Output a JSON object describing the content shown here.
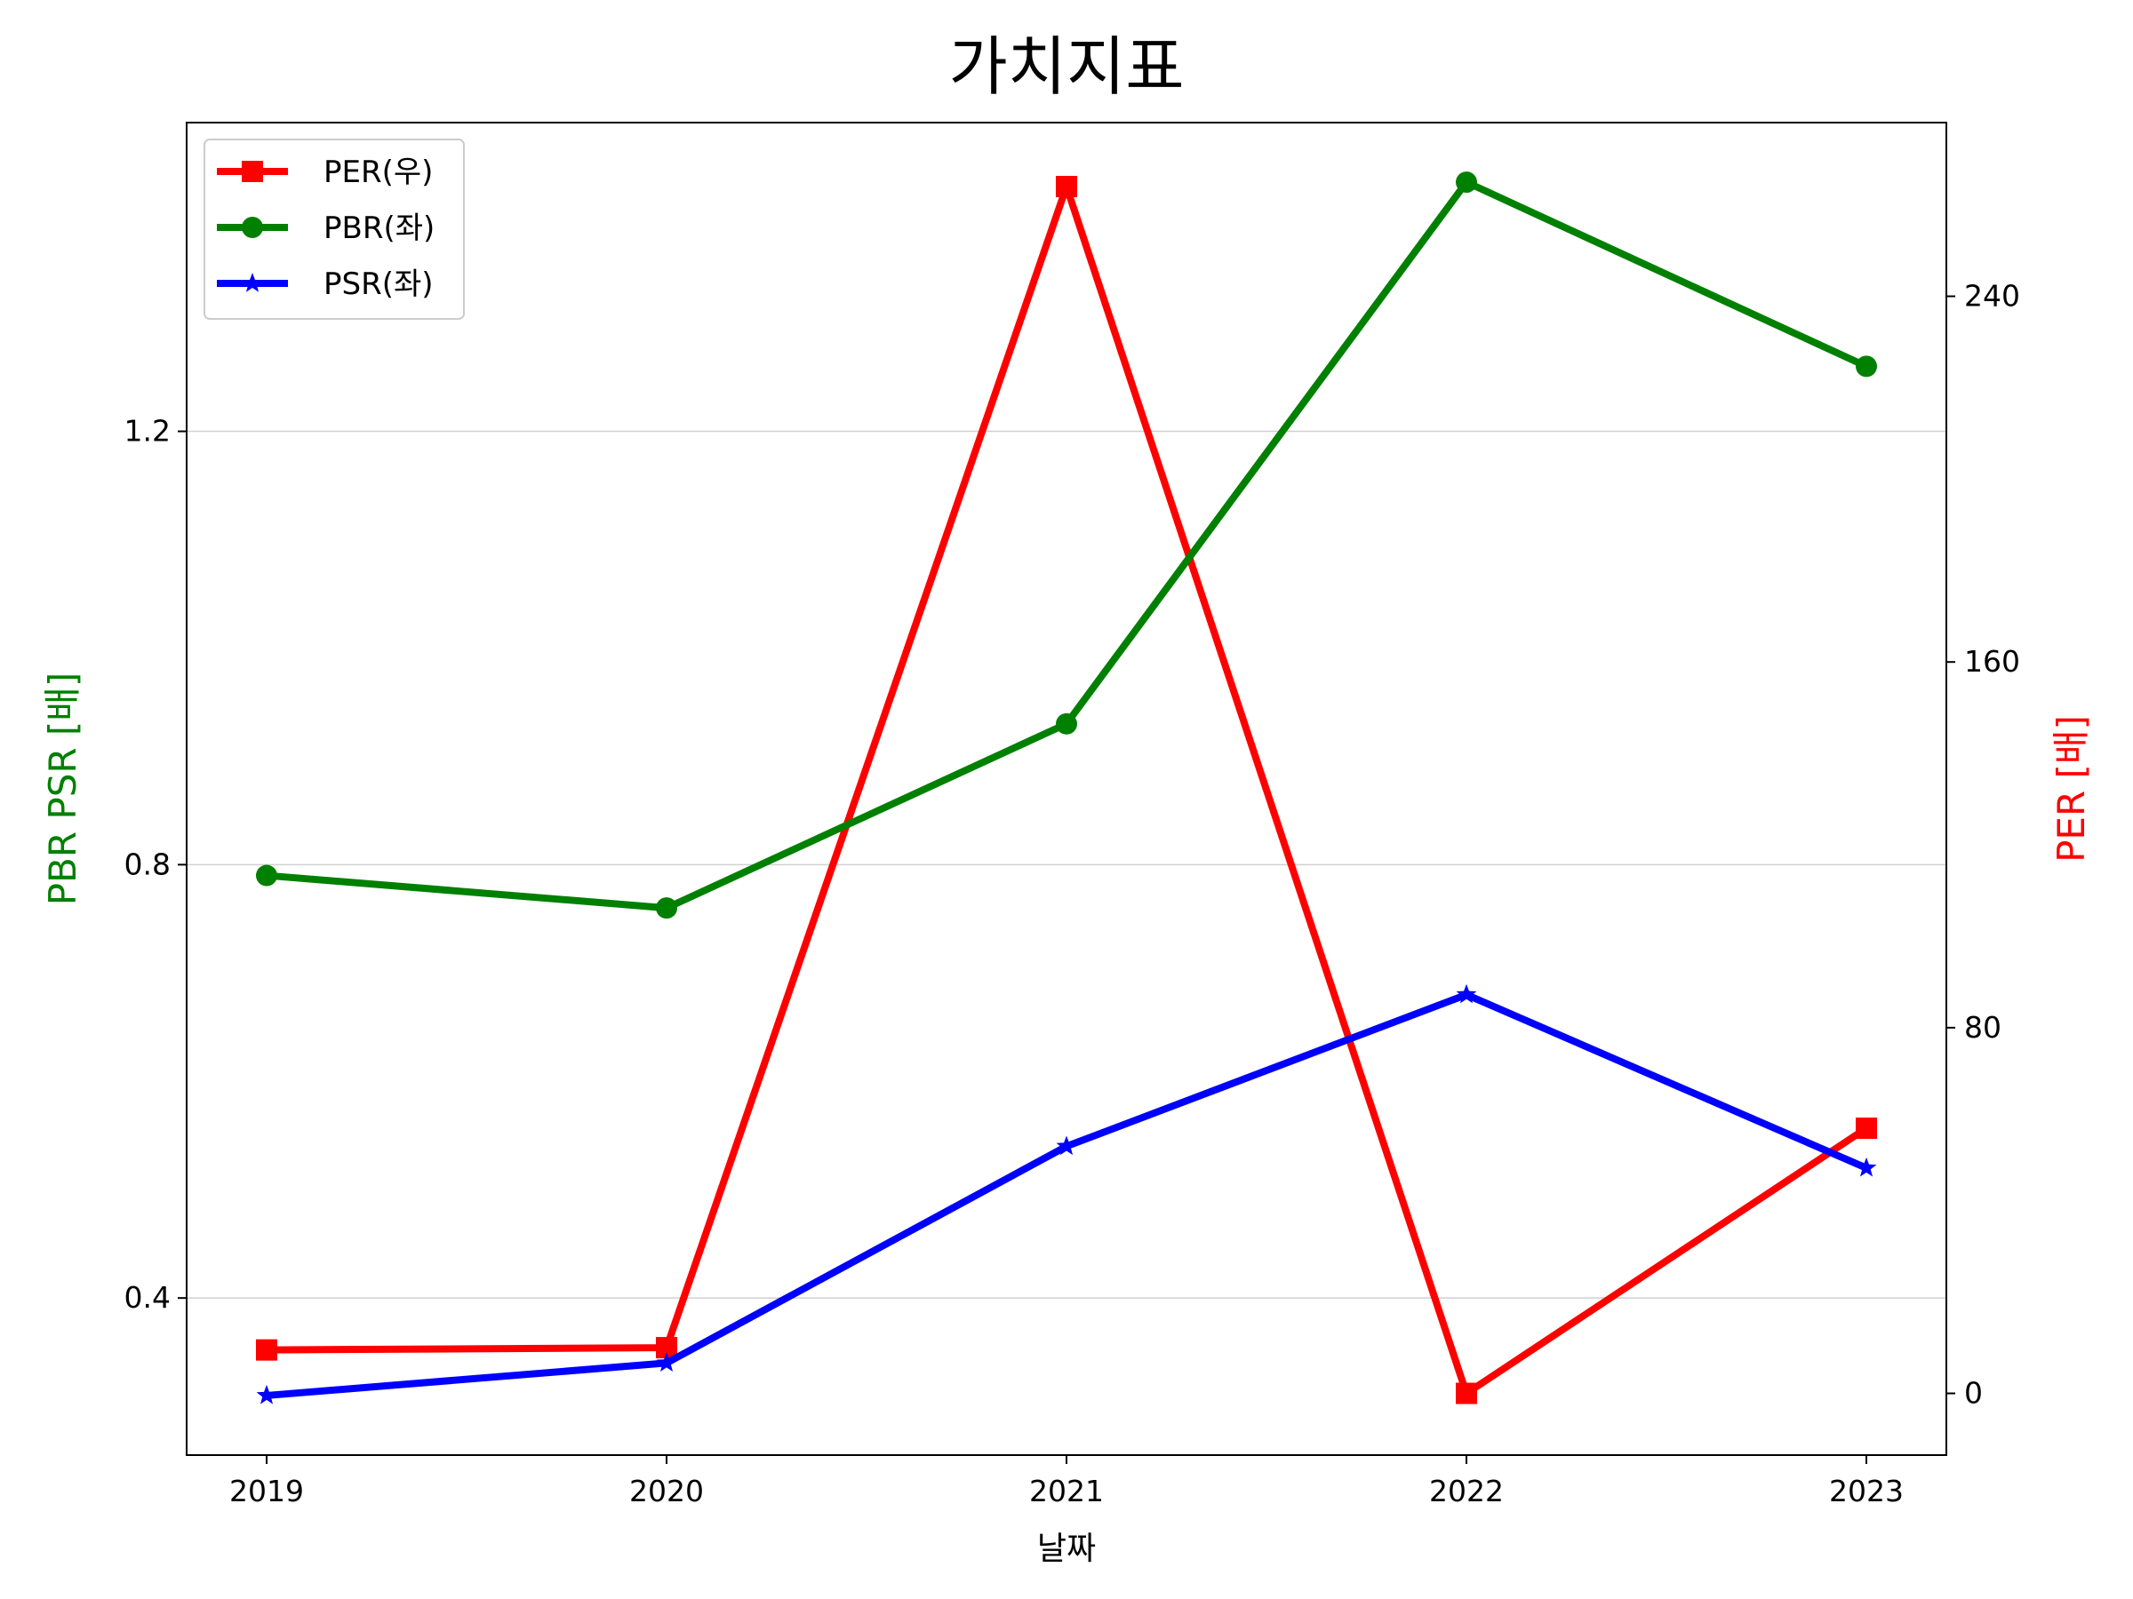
{
  "chart_data": {
    "type": "line",
    "title": "가치지표",
    "xlabel": "날짜",
    "ylabel_left": "PBR PSR [배]",
    "ylabel_right": "PER [배]",
    "categories": [
      "2019",
      "2020",
      "2021",
      "2022",
      "2023"
    ],
    "left_axis": {
      "ylim": [
        0.255,
        1.485
      ],
      "ticks": [
        0.4,
        0.8,
        1.2
      ],
      "tick_labels": [
        "0.4",
        "0.8",
        "1.2"
      ]
    },
    "right_axis": {
      "ylim": [
        -13.5,
        278
      ],
      "ticks": [
        0,
        80,
        160,
        240
      ],
      "tick_labels": [
        "0",
        "80",
        "160",
        "240"
      ]
    },
    "grid": {
      "horizontal": true,
      "vertical": false,
      "axis": "left"
    },
    "legend": {
      "placement": "upper-left"
    },
    "series": [
      {
        "name": "PER(우)",
        "axis": "right",
        "color": "#ff0000",
        "marker": "square",
        "values": [
          9.5,
          10,
          264,
          0,
          58
        ]
      },
      {
        "name": "PBR(좌)",
        "axis": "left",
        "color": "#008000",
        "marker": "circle",
        "values": [
          0.79,
          0.76,
          0.93,
          1.43,
          1.26
        ]
      },
      {
        "name": "PSR(좌)",
        "axis": "left",
        "color": "#0000ff",
        "marker": "star",
        "values": [
          0.31,
          0.34,
          0.54,
          0.68,
          0.52
        ]
      }
    ]
  }
}
